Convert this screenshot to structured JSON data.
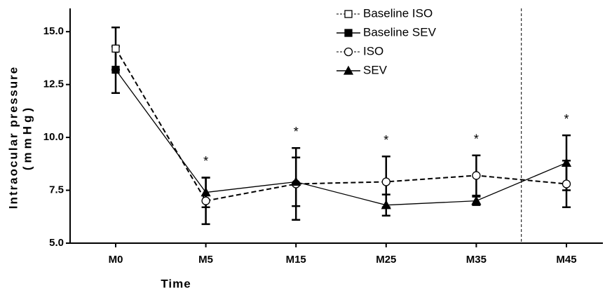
{
  "chart_data": {
    "type": "line",
    "xlabel": "Time",
    "ylabel": [
      "Intraocular pressure",
      "(mmHg)"
    ],
    "categories": [
      "M0",
      "M5",
      "M15",
      "M25",
      "M35",
      "M45"
    ],
    "ylim": [
      5,
      16.1
    ],
    "yticks": [
      {
        "value": 5,
        "label": "5.0"
      },
      {
        "value": 7.5,
        "label": "7.5"
      },
      {
        "value": 10,
        "label": "10.0"
      },
      {
        "value": 12.5,
        "label": "12.5"
      },
      {
        "value": 15,
        "label": "15.0"
      }
    ],
    "significance": [
      null,
      "*",
      "*",
      "*",
      "*",
      "*"
    ],
    "divider_after_category": 4,
    "series": [
      {
        "name": "Baseline ISO",
        "color": "#000000",
        "marker": "square",
        "filled": false,
        "dashed": true,
        "values": [
          14.2,
          null,
          null,
          null,
          null,
          null
        ],
        "errors": [
          1.0,
          null,
          null,
          null,
          null,
          null
        ]
      },
      {
        "name": "Baseline SEV",
        "color": "#000000",
        "marker": "square",
        "filled": true,
        "dashed": false,
        "values": [
          13.2,
          null,
          null,
          null,
          null,
          null
        ],
        "errors": [
          1.1,
          null,
          null,
          null,
          null,
          null
        ]
      },
      {
        "name": "ISO",
        "color": "#000000",
        "marker": "circle",
        "filled": false,
        "dashed": true,
        "joins_series": 0,
        "values": [
          null,
          7.0,
          7.8,
          7.9,
          8.2,
          7.8
        ],
        "errors": [
          null,
          1.1,
          1.7,
          1.2,
          0.95,
          1.1
        ]
      },
      {
        "name": "SEV",
        "color": "#000000",
        "marker": "triangle",
        "filled": true,
        "dashed": false,
        "joins_series": 1,
        "values": [
          null,
          7.4,
          7.9,
          6.8,
          7.0,
          8.8
        ],
        "errors": [
          null,
          0.7,
          1.15,
          0.5,
          0.2,
          1.3
        ]
      }
    ]
  }
}
